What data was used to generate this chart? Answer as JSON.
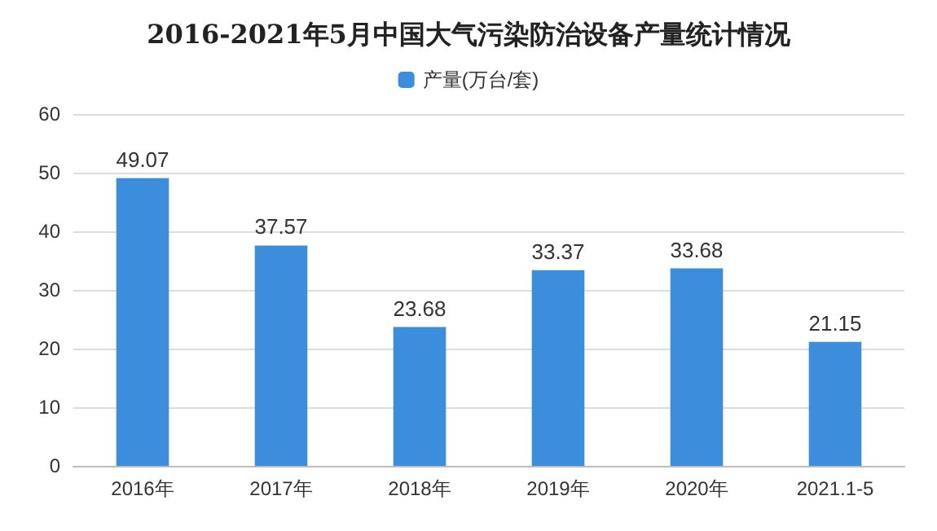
{
  "chart_data": {
    "type": "bar",
    "title": "2016-2021年5月中国大气污染防治设备产量统计情况",
    "categories": [
      "2016年",
      "2017年",
      "2018年",
      "2019年",
      "2020年",
      "2021.1-5"
    ],
    "series": [
      {
        "name": "产量(万台/套)",
        "color": "#3c8ddc",
        "values": [
          49.07,
          37.57,
          23.68,
          33.37,
          33.68,
          21.15
        ]
      }
    ],
    "ylim": [
      0,
      60
    ],
    "yticks": [
      0,
      10,
      20,
      30,
      40,
      50,
      60
    ],
    "grid": "y",
    "legend": "top",
    "data_labels": true
  }
}
